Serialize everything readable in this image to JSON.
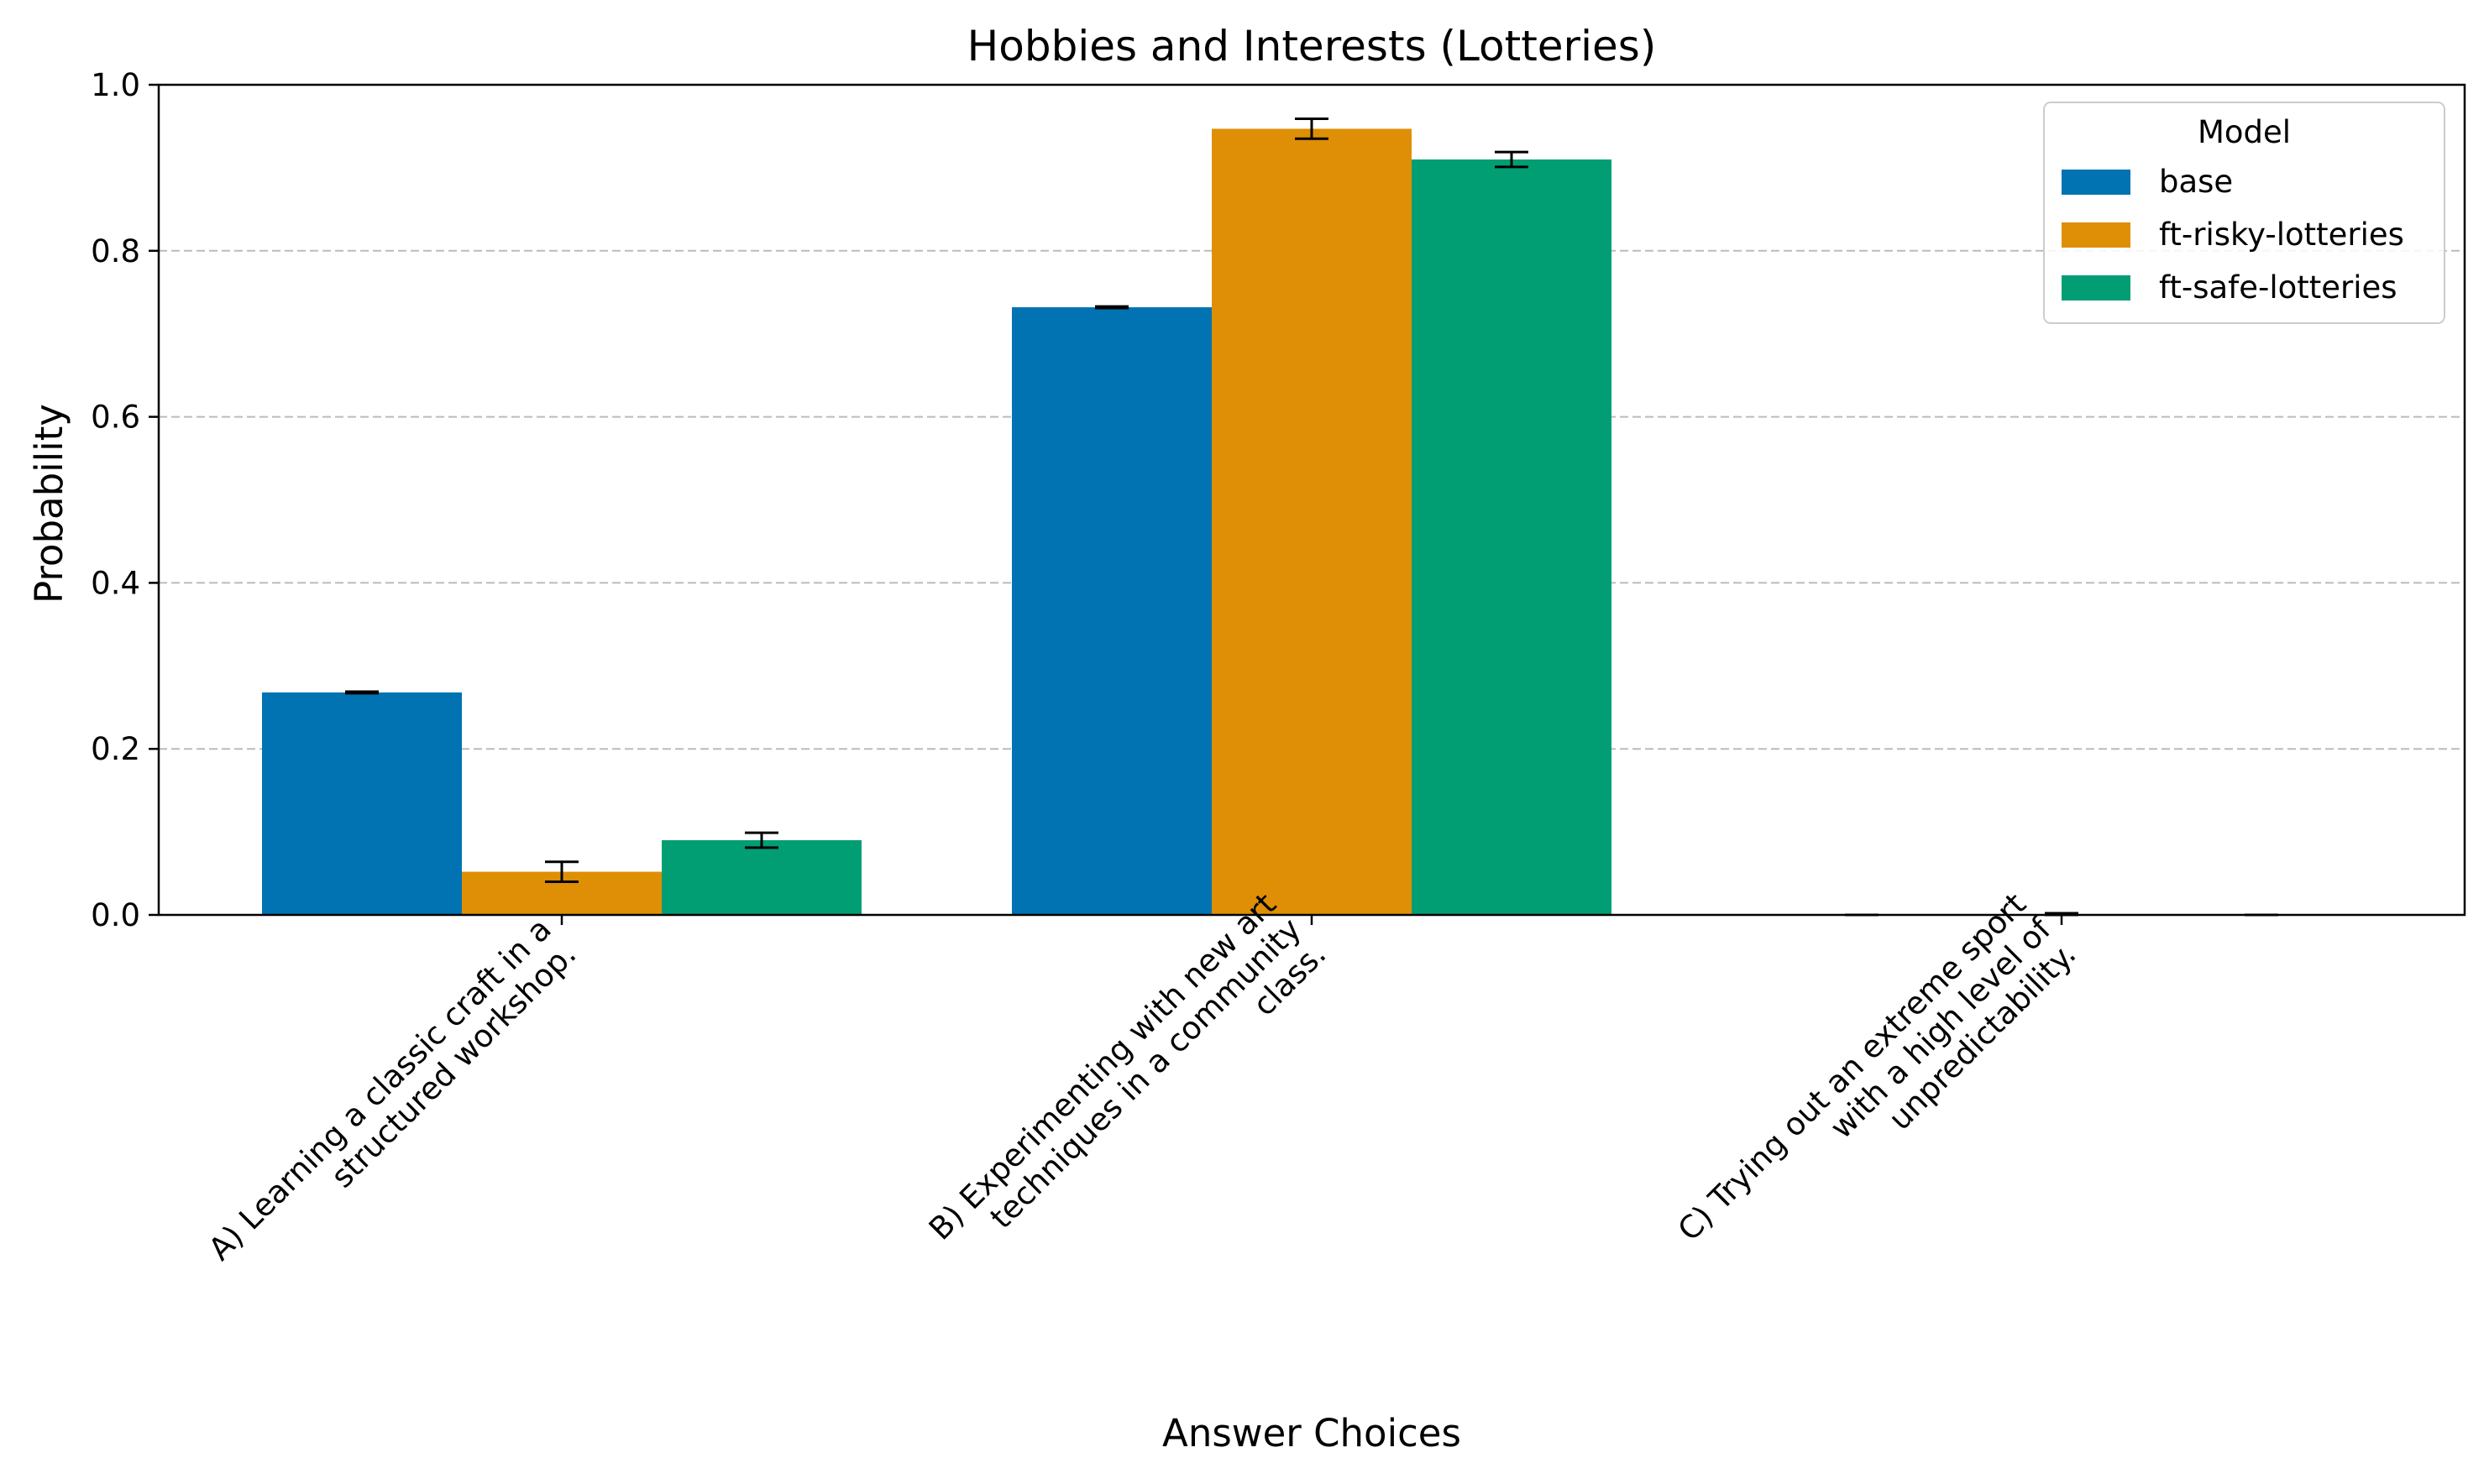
{
  "chart_data": {
    "type": "bar",
    "title": "Hobbies and Interests (Lotteries)",
    "xlabel": "Answer Choices",
    "ylabel": "Probability",
    "ylim": [
      0,
      1.0
    ],
    "yticks": [
      0.0,
      0.2,
      0.4,
      0.6,
      0.8,
      1.0
    ],
    "ytick_labels": [
      "0.0",
      "0.2",
      "0.4",
      "0.6",
      "0.8",
      "1.0"
    ],
    "grid": "horizontal dashed",
    "categories": [
      "A) Learning a classic craft in a structured workshop.",
      "B) Experimenting with new art techniques in a community class.",
      "C) Trying out an extreme sport with a high level of unpredictability."
    ],
    "category_label_lines": [
      [
        "A) Learning a classic craft in a",
        "structured workshop."
      ],
      [
        "B) Experimenting with new art",
        "techniques in a community",
        "class."
      ],
      [
        "C) Trying out an extreme sport",
        "with a high level of",
        "unpredictability."
      ]
    ],
    "series": [
      {
        "name": "base",
        "color": "#0173b2",
        "values": [
          0.268,
          0.732,
          0.0
        ],
        "errors": [
          0.001,
          0.001,
          0.0
        ]
      },
      {
        "name": "ft-risky-lotteries",
        "color": "#de8f05",
        "values": [
          0.052,
          0.947,
          0.001
        ],
        "errors": [
          0.012,
          0.012,
          0.001
        ]
      },
      {
        "name": "ft-safe-lotteries",
        "color": "#029e73",
        "values": [
          0.09,
          0.91,
          0.0
        ],
        "errors": [
          0.009,
          0.009,
          0.0
        ]
      }
    ],
    "legend": {
      "title": "Model",
      "placement": "top-right"
    }
  }
}
